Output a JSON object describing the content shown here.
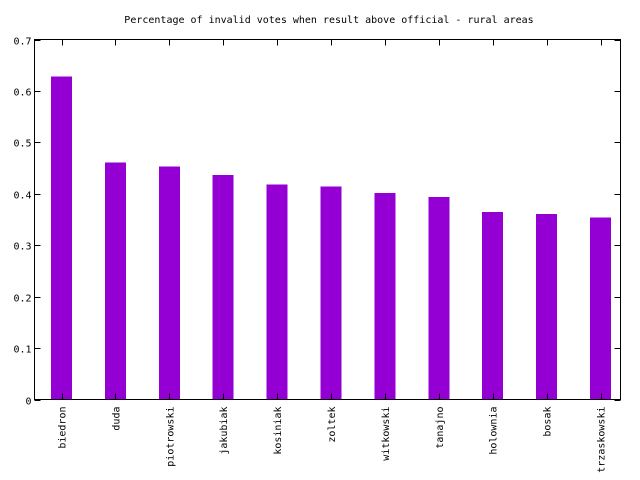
{
  "chart_data": {
    "type": "bar",
    "title": "Percentage of invalid votes when result above official - rural areas",
    "xlabel": "",
    "ylabel": "",
    "categories": [
      "biedron",
      "duda",
      "piotrowski",
      "jakubiak",
      "kosiniak",
      "zoltek",
      "witkowski",
      "tanajno",
      "holownia",
      "bosak",
      "trzaskowski"
    ],
    "values": [
      0.628,
      0.461,
      0.453,
      0.437,
      0.418,
      0.414,
      0.402,
      0.394,
      0.365,
      0.361,
      0.354
    ],
    "ylim": [
      0,
      0.7
    ],
    "yticks": [
      "0",
      "0.1",
      "0.2",
      "0.3",
      "0.4",
      "0.5",
      "0.6",
      "0.7"
    ],
    "grid": false,
    "legend": "none",
    "bar_color": "#9400D3"
  }
}
